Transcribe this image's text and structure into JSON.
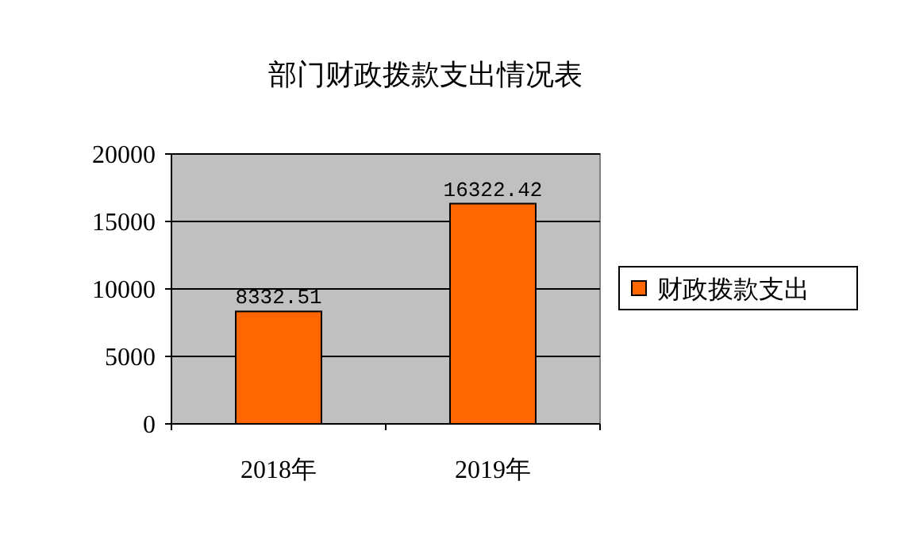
{
  "chart_data": {
    "type": "bar",
    "title": "部门财政拨款支出情况表",
    "categories": [
      "2018年",
      "2019年"
    ],
    "series": [
      {
        "name": "财政拨款支出",
        "color": "#ff6600",
        "values": [
          8332.51,
          16322.42
        ]
      }
    ],
    "ylim": [
      0,
      20000
    ],
    "yticks": [
      0,
      5000,
      10000,
      15000,
      20000
    ],
    "grid": "y",
    "legend": "right",
    "data_labels": true
  }
}
